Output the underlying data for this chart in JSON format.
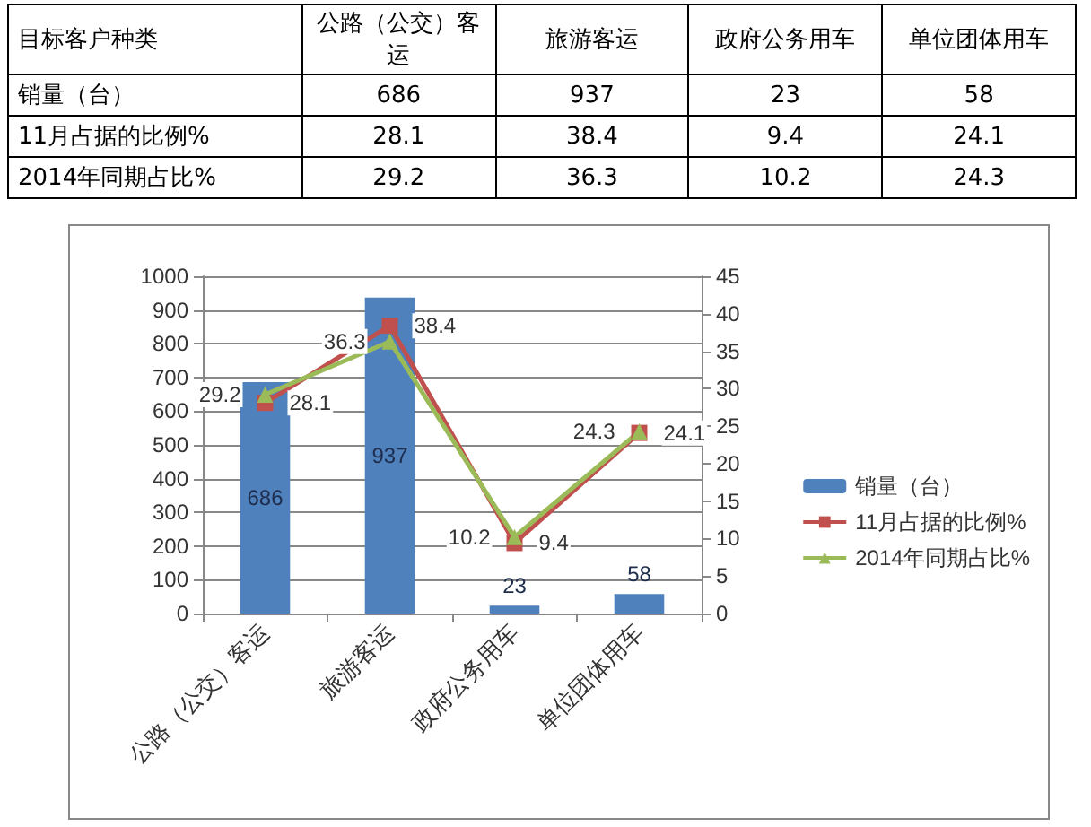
{
  "chart_data": {
    "type": "bar",
    "categories": [
      "公路（公交）客运",
      "旅游客运",
      "政府公务用车",
      "单位团体用车"
    ],
    "annotations": [
      "目标客户种类"
    ],
    "series": [
      {
        "name": "销量（台）",
        "color": "#4f81bd",
        "values": [
          686,
          937,
          23,
          58
        ],
        "value_labels": [
          "686",
          "937",
          "23",
          "58"
        ]
      },
      {
        "name": "11月占据的比例%",
        "type": "line",
        "axis": "y2",
        "marker": "square",
        "color": "#c0504d",
        "values": [
          28.1,
          38.4,
          9.4,
          24.1
        ],
        "value_labels": [
          "28.1",
          "38.4",
          "9.4",
          "24.1"
        ]
      },
      {
        "name": "2014年同期占比%",
        "type": "line",
        "axis": "y2",
        "marker": "triangle",
        "color": "#9bbb59",
        "values": [
          29.2,
          36.3,
          10.2,
          24.3
        ],
        "value_labels": [
          "29.2",
          "36.3",
          "10.2",
          "24.3"
        ]
      }
    ],
    "ylim": [
      0,
      1000
    ],
    "yticks": [
      0,
      100,
      200,
      300,
      400,
      500,
      600,
      700,
      800,
      900,
      1000
    ],
    "y2lim": [
      0,
      45
    ],
    "y2ticks": [
      0,
      5,
      10,
      15,
      20,
      25,
      30,
      35,
      40,
      45
    ],
    "grid": "y",
    "legend": "right",
    "line_style": "solid"
  }
}
